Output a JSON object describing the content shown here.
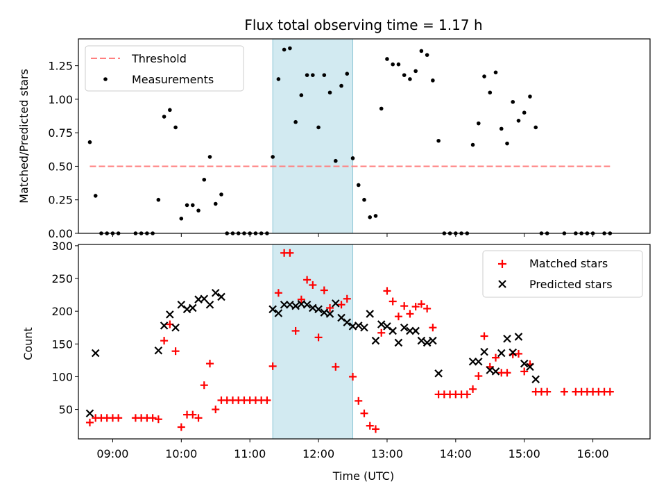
{
  "chart_data": [
    {
      "type": "scatter",
      "title": "Flux total observing time = 1.17 h",
      "ylabel": "Matched/Predicted stars",
      "xlabel": "",
      "xlim": [
        "08:30",
        "16:50"
      ],
      "ylim": [
        0,
        1.45
      ],
      "yticks": [
        "0.00",
        "0.25",
        "0.50",
        "0.75",
        "1.00",
        "1.25"
      ],
      "ytick_values": [
        0,
        0.25,
        0.5,
        0.75,
        1.0,
        1.25
      ],
      "highlight_span": [
        "11:20",
        "12:30"
      ],
      "legend_position": "top-left",
      "threshold": {
        "name": "Threshold",
        "value": 0.5,
        "x_start": "08:40",
        "x_end": "16:15",
        "color": "#ff7f7f",
        "style": "dashed"
      },
      "series": [
        {
          "name": "Measurements",
          "marker": "dot",
          "color": "#000000",
          "points": [
            [
              "08:40",
              0.68
            ],
            [
              "08:45",
              0.28
            ],
            [
              "08:50",
              0.0
            ],
            [
              "08:55",
              0.0
            ],
            [
              "09:00",
              0.0
            ],
            [
              "09:05",
              0.0
            ],
            [
              "09:20",
              0.0
            ],
            [
              "09:25",
              0.0
            ],
            [
              "09:30",
              0.0
            ],
            [
              "09:35",
              0.0
            ],
            [
              "09:40",
              0.25
            ],
            [
              "09:45",
              0.87
            ],
            [
              "09:50",
              0.92
            ],
            [
              "09:55",
              0.79
            ],
            [
              "10:00",
              0.11
            ],
            [
              "10:05",
              0.21
            ],
            [
              "10:10",
              0.21
            ],
            [
              "10:15",
              0.17
            ],
            [
              "10:20",
              0.4
            ],
            [
              "10:25",
              0.57
            ],
            [
              "10:30",
              0.22
            ],
            [
              "10:35",
              0.29
            ],
            [
              "10:40",
              0.0
            ],
            [
              "10:45",
              0.0
            ],
            [
              "10:50",
              0.0
            ],
            [
              "10:55",
              0.0
            ],
            [
              "11:00",
              0.0
            ],
            [
              "11:05",
              0.0
            ],
            [
              "11:10",
              0.0
            ],
            [
              "11:15",
              0.0
            ],
            [
              "11:20",
              0.57
            ],
            [
              "11:25",
              1.15
            ],
            [
              "11:30",
              1.37
            ],
            [
              "11:35",
              1.38
            ],
            [
              "11:40",
              0.83
            ],
            [
              "11:45",
              1.03
            ],
            [
              "11:50",
              1.18
            ],
            [
              "11:55",
              1.18
            ],
            [
              "12:00",
              0.79
            ],
            [
              "12:05",
              1.18
            ],
            [
              "12:10",
              1.05
            ],
            [
              "12:15",
              0.54
            ],
            [
              "12:20",
              1.1
            ],
            [
              "12:25",
              1.19
            ],
            [
              "12:30",
              0.56
            ],
            [
              "12:35",
              0.36
            ],
            [
              "12:40",
              0.25
            ],
            [
              "12:45",
              0.12
            ],
            [
              "12:50",
              0.13
            ],
            [
              "12:55",
              0.93
            ],
            [
              "13:00",
              1.3
            ],
            [
              "13:05",
              1.26
            ],
            [
              "13:10",
              1.26
            ],
            [
              "13:15",
              1.18
            ],
            [
              "13:20",
              1.15
            ],
            [
              "13:25",
              1.21
            ],
            [
              "13:30",
              1.36
            ],
            [
              "13:35",
              1.33
            ],
            [
              "13:40",
              1.14
            ],
            [
              "13:45",
              0.69
            ],
            [
              "13:50",
              0.0
            ],
            [
              "13:55",
              0.0
            ],
            [
              "14:00",
              0.0
            ],
            [
              "14:05",
              0.0
            ],
            [
              "14:10",
              0.0
            ],
            [
              "14:15",
              0.66
            ],
            [
              "14:20",
              0.82
            ],
            [
              "14:25",
              1.17
            ],
            [
              "14:30",
              1.05
            ],
            [
              "14:35",
              1.2
            ],
            [
              "14:40",
              0.78
            ],
            [
              "14:45",
              0.67
            ],
            [
              "14:50",
              0.98
            ],
            [
              "14:55",
              0.84
            ],
            [
              "15:00",
              0.9
            ],
            [
              "15:05",
              1.02
            ],
            [
              "15:10",
              0.79
            ],
            [
              "15:15",
              0.0
            ],
            [
              "15:20",
              0.0
            ],
            [
              "15:35",
              0.0
            ],
            [
              "15:45",
              0.0
            ],
            [
              "15:50",
              0.0
            ],
            [
              "15:55",
              0.0
            ],
            [
              "16:00",
              0.0
            ],
            [
              "16:10",
              0.0
            ],
            [
              "16:15",
              0.0
            ]
          ]
        }
      ]
    },
    {
      "type": "scatter",
      "title": "",
      "xlabel": "Time (UTC)",
      "ylabel": "Count",
      "xlim": [
        "08:30",
        "16:50"
      ],
      "ylim": [
        5,
        302
      ],
      "xticks": [
        "09:00",
        "10:00",
        "11:00",
        "12:00",
        "13:00",
        "14:00",
        "15:00",
        "16:00"
      ],
      "yticks": [
        "50",
        "100",
        "150",
        "200",
        "250",
        "300"
      ],
      "ytick_values": [
        50,
        100,
        150,
        200,
        250,
        300
      ],
      "highlight_span": [
        "11:20",
        "12:30"
      ],
      "legend_position": "top-right",
      "series": [
        {
          "name": "Matched stars",
          "marker": "plus",
          "color": "#ff0000",
          "points": [
            [
              "08:40",
              30
            ],
            [
              "08:45",
              37
            ],
            [
              "08:50",
              37
            ],
            [
              "08:55",
              37
            ],
            [
              "09:00",
              37
            ],
            [
              "09:05",
              37
            ],
            [
              "09:20",
              37
            ],
            [
              "09:25",
              37
            ],
            [
              "09:30",
              37
            ],
            [
              "09:35",
              37
            ],
            [
              "09:40",
              35
            ],
            [
              "09:45",
              155
            ],
            [
              "09:50",
              180
            ],
            [
              "09:55",
              139
            ],
            [
              "10:00",
              23
            ],
            [
              "10:05",
              42
            ],
            [
              "10:10",
              42
            ],
            [
              "10:15",
              37
            ],
            [
              "10:20",
              87
            ],
            [
              "10:25",
              120
            ],
            [
              "10:30",
              50
            ],
            [
              "10:35",
              64
            ],
            [
              "10:40",
              64
            ],
            [
              "10:45",
              64
            ],
            [
              "10:50",
              64
            ],
            [
              "10:55",
              64
            ],
            [
              "11:00",
              64
            ],
            [
              "11:05",
              64
            ],
            [
              "11:10",
              64
            ],
            [
              "11:15",
              64
            ],
            [
              "11:20",
              116
            ],
            [
              "11:25",
              228
            ],
            [
              "11:30",
              289
            ],
            [
              "11:35",
              289
            ],
            [
              "11:40",
              170
            ],
            [
              "11:45",
              218
            ],
            [
              "11:50",
              248
            ],
            [
              "11:55",
              240
            ],
            [
              "12:00",
              160
            ],
            [
              "12:05",
              232
            ],
            [
              "12:10",
              205
            ],
            [
              "12:15",
              115
            ],
            [
              "12:20",
              210
            ],
            [
              "12:25",
              219
            ],
            [
              "12:30",
              100
            ],
            [
              "12:35",
              63
            ],
            [
              "12:40",
              44
            ],
            [
              "12:45",
              25
            ],
            [
              "12:50",
              20
            ],
            [
              "12:55",
              167
            ],
            [
              "13:00",
              231
            ],
            [
              "13:05",
              215
            ],
            [
              "13:10",
              192
            ],
            [
              "13:15",
              208
            ],
            [
              "13:20",
              196
            ],
            [
              "13:25",
              207
            ],
            [
              "13:30",
              211
            ],
            [
              "13:35",
              204
            ],
            [
              "13:40",
              175
            ],
            [
              "13:45",
              73
            ],
            [
              "13:50",
              73
            ],
            [
              "13:55",
              73
            ],
            [
              "14:00",
              73
            ],
            [
              "14:05",
              73
            ],
            [
              "14:10",
              73
            ],
            [
              "14:15",
              81
            ],
            [
              "14:20",
              101
            ],
            [
              "14:25",
              162
            ],
            [
              "14:30",
              115
            ],
            [
              "14:35",
              129
            ],
            [
              "14:40",
              106
            ],
            [
              "14:45",
              106
            ],
            [
              "14:50",
              134
            ],
            [
              "14:55",
              135
            ],
            [
              "15:00",
              108
            ],
            [
              "15:05",
              119
            ],
            [
              "15:10",
              77
            ],
            [
              "15:15",
              77
            ],
            [
              "15:20",
              77
            ],
            [
              "15:35",
              77
            ],
            [
              "15:45",
              77
            ],
            [
              "15:50",
              77
            ],
            [
              "15:55",
              77
            ],
            [
              "16:00",
              77
            ],
            [
              "16:05",
              77
            ],
            [
              "16:10",
              77
            ],
            [
              "16:15",
              77
            ]
          ]
        },
        {
          "name": "Predicted stars",
          "marker": "x",
          "color": "#000000",
          "points": [
            [
              "08:40",
              44
            ],
            [
              "08:45",
              136
            ],
            [
              "09:40",
              140
            ],
            [
              "09:45",
              178
            ],
            [
              "09:50",
              195
            ],
            [
              "09:55",
              175
            ],
            [
              "10:00",
              210
            ],
            [
              "10:05",
              203
            ],
            [
              "10:10",
              205
            ],
            [
              "10:15",
              218
            ],
            [
              "10:20",
              219
            ],
            [
              "10:25",
              210
            ],
            [
              "10:30",
              228
            ],
            [
              "10:35",
              222
            ],
            [
              "11:20",
              203
            ],
            [
              "11:25",
              197
            ],
            [
              "11:30",
              210
            ],
            [
              "11:35",
              210
            ],
            [
              "11:40",
              208
            ],
            [
              "11:45",
              211
            ],
            [
              "11:50",
              210
            ],
            [
              "11:55",
              205
            ],
            [
              "12:00",
              203
            ],
            [
              "12:05",
              198
            ],
            [
              "12:10",
              196
            ],
            [
              "12:15",
              212
            ],
            [
              "12:20",
              190
            ],
            [
              "12:25",
              183
            ],
            [
              "12:30",
              177
            ],
            [
              "12:35",
              178
            ],
            [
              "12:40",
              175
            ],
            [
              "12:45",
              196
            ],
            [
              "12:50",
              155
            ],
            [
              "12:55",
              180
            ],
            [
              "13:00",
              177
            ],
            [
              "13:05",
              170
            ],
            [
              "13:10",
              152
            ],
            [
              "13:15",
              175
            ],
            [
              "13:20",
              170
            ],
            [
              "13:25",
              170
            ],
            [
              "13:30",
              155
            ],
            [
              "13:35",
              152
            ],
            [
              "13:40",
              155
            ],
            [
              "13:45",
              105
            ],
            [
              "14:15",
              123
            ],
            [
              "14:20",
              123
            ],
            [
              "14:25",
              138
            ],
            [
              "14:30",
              110
            ],
            [
              "14:35",
              108
            ],
            [
              "14:40",
              136
            ],
            [
              "14:45",
              158
            ],
            [
              "14:50",
              137
            ],
            [
              "14:55",
              161
            ],
            [
              "15:00",
              120
            ],
            [
              "15:05",
              115
            ],
            [
              "15:10",
              96
            ]
          ]
        }
      ]
    }
  ]
}
